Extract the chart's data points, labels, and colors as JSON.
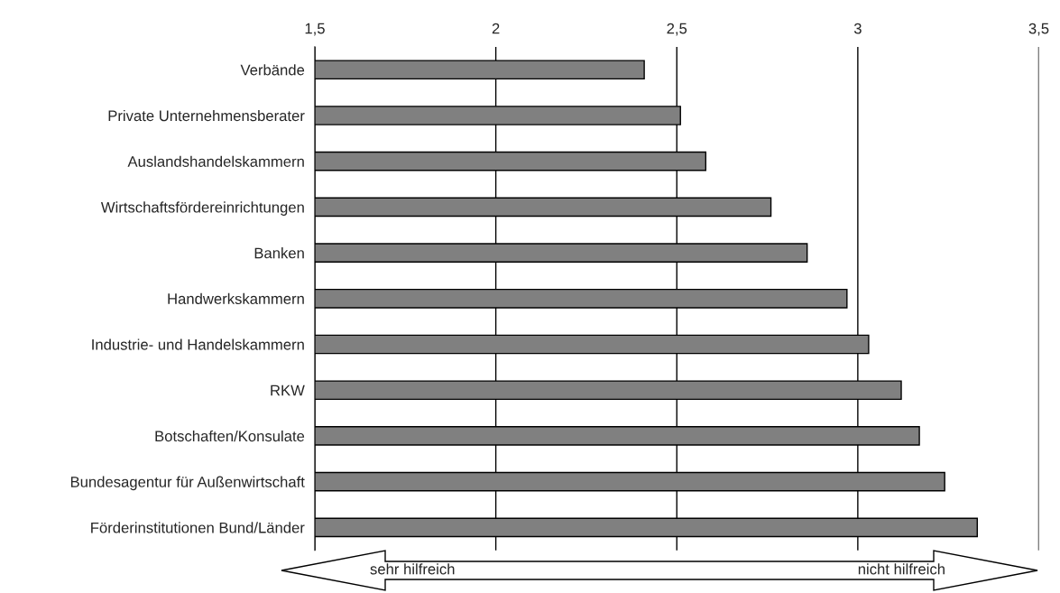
{
  "chart_data": {
    "type": "bar",
    "orientation": "horizontal",
    "categories": [
      "Verbände",
      "Private Unternehmensberater",
      "Auslandshandelskammern",
      "Wirtschaftsfördereinrichtungen",
      "Banken",
      "Handwerkskammern",
      "Industrie- und Handelskammern",
      "RKW",
      "Botschaften/Konsulate",
      "Bundesagentur für Außenwirtschaft",
      "Förderinstitutionen Bund/Länder"
    ],
    "values": [
      2.41,
      2.51,
      2.58,
      2.76,
      2.86,
      2.97,
      3.03,
      3.12,
      3.17,
      3.24,
      3.33
    ],
    "color": "#808080",
    "xlim": [
      1.5,
      3.5
    ],
    "xticks": [
      {
        "value": 1.5,
        "label": "1,5"
      },
      {
        "value": 2,
        "label": "2"
      },
      {
        "value": 2.5,
        "label": "2,5"
      },
      {
        "value": 3,
        "label": "3"
      },
      {
        "value": 3.5,
        "label": "3,5"
      }
    ],
    "grid": "x",
    "annotations": [
      "sehr hilfreich",
      "nicht hilfreich"
    ]
  }
}
